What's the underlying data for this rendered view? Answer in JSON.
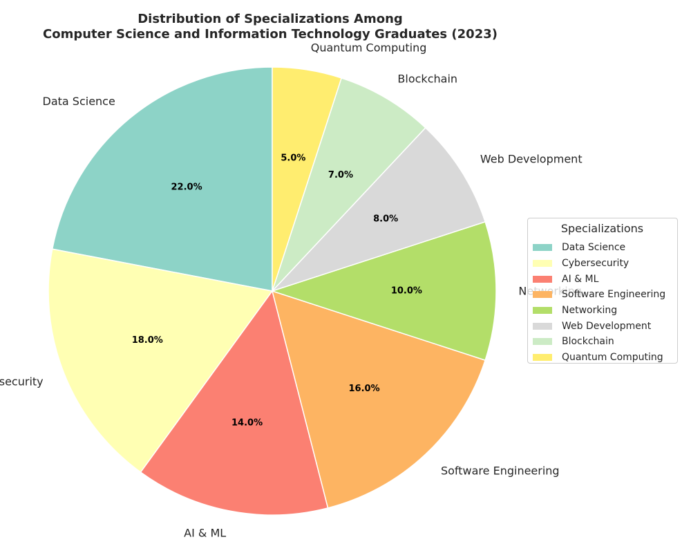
{
  "chart_data": {
    "type": "pie",
    "title": "Distribution of Specializations Among\nComputer Science and Information Technology Graduates (2023)",
    "categories": [
      "Data Science",
      "Cybersecurity",
      "AI & ML",
      "Software Engineering",
      "Networking",
      "Web Development",
      "Blockchain",
      "Quantum Computing"
    ],
    "values": [
      22.0,
      18.0,
      14.0,
      16.0,
      10.0,
      8.0,
      7.0,
      5.0
    ],
    "value_labels": [
      "22.0%",
      "18.0%",
      "14.0%",
      "16.0%",
      "10.0%",
      "8.0%",
      "7.0%",
      "5.0%"
    ],
    "colors": [
      "#8dd3c7",
      "#ffffb3",
      "#fb8072",
      "#fdb462",
      "#b3de69",
      "#d9d9d9",
      "#ccebc5",
      "#ffed6f"
    ],
    "start_angle_deg": 90,
    "direction": "counterclockwise",
    "legend": {
      "title": "Specializations",
      "placement": "center-right"
    }
  }
}
